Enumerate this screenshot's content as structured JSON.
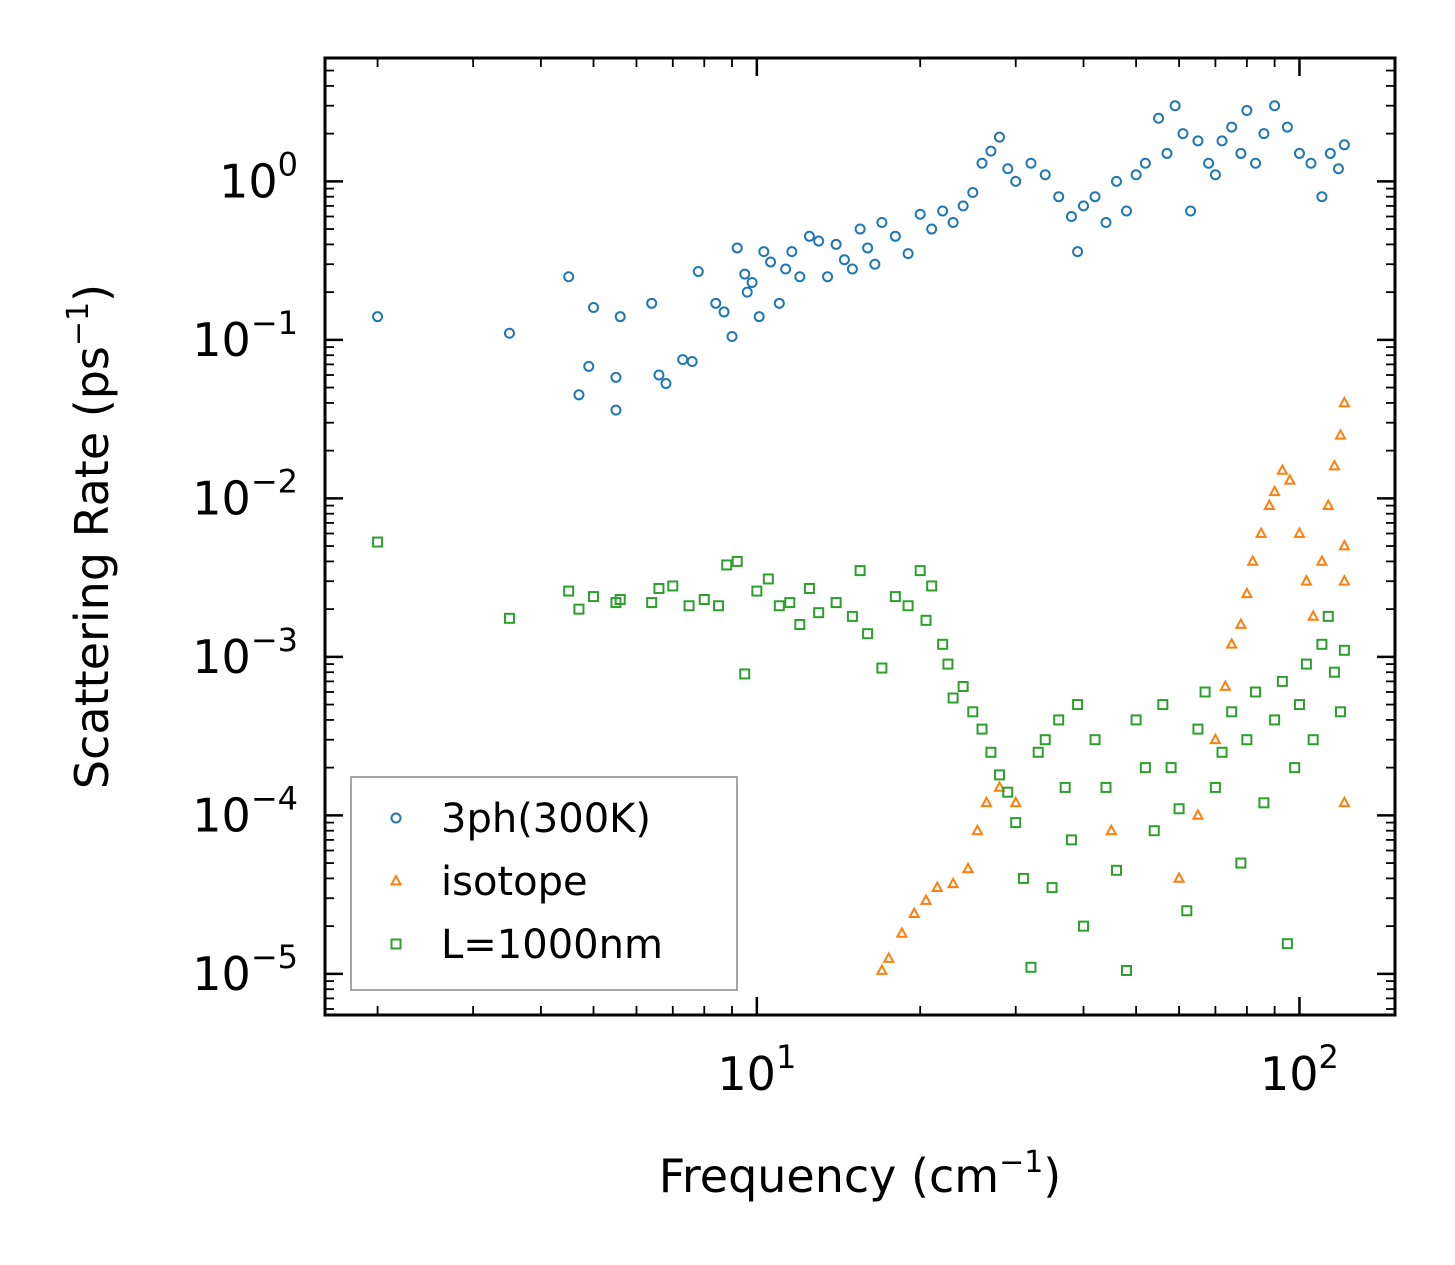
{
  "chart_data": {
    "type": "scatter",
    "xlabel": {
      "base": "Frequency (cm",
      "sup": "−1",
      "tail": ")"
    },
    "ylabel": {
      "base": "Scattering Rate (ps",
      "sup": "−1",
      "tail": ")"
    },
    "xscale": "log",
    "yscale": "log",
    "xlim": [
      1.6,
      150
    ],
    "ylim": [
      5.5e-06,
      6
    ],
    "x_ticks": [
      {
        "value": 10,
        "base": "10",
        "exp": "1"
      },
      {
        "value": 100,
        "base": "10",
        "exp": "2"
      }
    ],
    "y_ticks": [
      {
        "value": 1,
        "base": "10",
        "exp": "0"
      },
      {
        "value": 0.1,
        "base": "10",
        "exp": "−1"
      },
      {
        "value": 0.01,
        "base": "10",
        "exp": "−2"
      },
      {
        "value": 0.001,
        "base": "10",
        "exp": "−3"
      },
      {
        "value": 0.0001,
        "base": "10",
        "exp": "−4"
      },
      {
        "value": 1e-05,
        "base": "10",
        "exp": "−5"
      }
    ],
    "legend_position": "lower-left",
    "series": [
      {
        "name": "3ph(300K)",
        "marker": "circle",
        "color": "#1f77b4",
        "points": [
          [
            2.0,
            0.14
          ],
          [
            3.5,
            0.11
          ],
          [
            4.5,
            0.25
          ],
          [
            4.7,
            0.045
          ],
          [
            4.9,
            0.068
          ],
          [
            5.0,
            0.16
          ],
          [
            5.5,
            0.058
          ],
          [
            5.5,
            0.036
          ],
          [
            5.6,
            0.14
          ],
          [
            6.4,
            0.17
          ],
          [
            6.6,
            0.06
          ],
          [
            6.8,
            0.053
          ],
          [
            7.3,
            0.075
          ],
          [
            7.6,
            0.073
          ],
          [
            7.8,
            0.27
          ],
          [
            8.4,
            0.17
          ],
          [
            8.7,
            0.15
          ],
          [
            9.0,
            0.105
          ],
          [
            9.2,
            0.38
          ],
          [
            9.5,
            0.26
          ],
          [
            9.6,
            0.2
          ],
          [
            9.8,
            0.23
          ],
          [
            10.1,
            0.14
          ],
          [
            10.3,
            0.36
          ],
          [
            10.6,
            0.31
          ],
          [
            11.0,
            0.17
          ],
          [
            11.3,
            0.28
          ],
          [
            11.6,
            0.36
          ],
          [
            12.0,
            0.25
          ],
          [
            12.5,
            0.45
          ],
          [
            13.0,
            0.42
          ],
          [
            13.5,
            0.25
          ],
          [
            14.0,
            0.4
          ],
          [
            14.5,
            0.32
          ],
          [
            15.0,
            0.28
          ],
          [
            15.5,
            0.5
          ],
          [
            16.0,
            0.38
          ],
          [
            16.5,
            0.3
          ],
          [
            17.0,
            0.55
          ],
          [
            18.0,
            0.45
          ],
          [
            19.0,
            0.35
          ],
          [
            20.0,
            0.62
          ],
          [
            21.0,
            0.5
          ],
          [
            22.0,
            0.65
          ],
          [
            23.0,
            0.55
          ],
          [
            24.0,
            0.7
          ],
          [
            25.0,
            0.85
          ],
          [
            26.0,
            1.3
          ],
          [
            27.0,
            1.55
          ],
          [
            28.0,
            1.9
          ],
          [
            29.0,
            1.2
          ],
          [
            30.0,
            1.0
          ],
          [
            32.0,
            1.3
          ],
          [
            34.0,
            1.1
          ],
          [
            36.0,
            0.8
          ],
          [
            38.0,
            0.6
          ],
          [
            39.0,
            0.36
          ],
          [
            40.0,
            0.7
          ],
          [
            42.0,
            0.8
          ],
          [
            44.0,
            0.55
          ],
          [
            46.0,
            1.0
          ],
          [
            48.0,
            0.65
          ],
          [
            50.0,
            1.1
          ],
          [
            52.0,
            1.3
          ],
          [
            55.0,
            2.5
          ],
          [
            57.0,
            1.5
          ],
          [
            59.0,
            3.0
          ],
          [
            61.0,
            2.0
          ],
          [
            63.0,
            0.65
          ],
          [
            65.0,
            1.8
          ],
          [
            68.0,
            1.3
          ],
          [
            70.0,
            1.1
          ],
          [
            72.0,
            1.8
          ],
          [
            75.0,
            2.2
          ],
          [
            78.0,
            1.5
          ],
          [
            80.0,
            2.8
          ],
          [
            83.0,
            1.3
          ],
          [
            86.0,
            2.0
          ],
          [
            90.0,
            3.0
          ],
          [
            95.0,
            2.2
          ],
          [
            100.0,
            1.5
          ],
          [
            105.0,
            1.3
          ],
          [
            110.0,
            0.8
          ],
          [
            114.0,
            1.5
          ],
          [
            118.0,
            1.2
          ],
          [
            121.0,
            1.7
          ]
        ]
      },
      {
        "name": "isotope",
        "marker": "triangle",
        "color": "#ff7f0e",
        "points": [
          [
            17.0,
            1.05e-05
          ],
          [
            17.5,
            1.25e-05
          ],
          [
            18.5,
            1.8e-05
          ],
          [
            19.5,
            2.4e-05
          ],
          [
            20.5,
            2.9e-05
          ],
          [
            21.5,
            3.5e-05
          ],
          [
            23.0,
            3.7e-05
          ],
          [
            24.5,
            4.6e-05
          ],
          [
            25.5,
            8e-05
          ],
          [
            26.5,
            0.00012
          ],
          [
            28.0,
            0.00015
          ],
          [
            30.0,
            0.00012
          ],
          [
            45.0,
            8e-05
          ],
          [
            60.0,
            4e-05
          ],
          [
            65.0,
            0.0001
          ],
          [
            70.0,
            0.0003
          ],
          [
            73.0,
            0.00065
          ],
          [
            75.0,
            0.0012
          ],
          [
            78.0,
            0.0016
          ],
          [
            80.0,
            0.0025
          ],
          [
            82.0,
            0.004
          ],
          [
            85.0,
            0.006
          ],
          [
            88.0,
            0.009
          ],
          [
            90.0,
            0.011
          ],
          [
            93.0,
            0.015
          ],
          [
            96.0,
            0.013
          ],
          [
            100.0,
            0.006
          ],
          [
            103.0,
            0.003
          ],
          [
            106.0,
            0.0018
          ],
          [
            110.0,
            0.004
          ],
          [
            113.0,
            0.009
          ],
          [
            116.0,
            0.016
          ],
          [
            119.0,
            0.025
          ],
          [
            121.0,
            0.04
          ],
          [
            121.0,
            0.005
          ],
          [
            121.0,
            0.003
          ],
          [
            121.0,
            0.00012
          ]
        ]
      },
      {
        "name": "L=1000nm",
        "marker": "square",
        "color": "#2ca02c",
        "points": [
          [
            2.0,
            0.0053
          ],
          [
            3.5,
            0.00175
          ],
          [
            4.5,
            0.0026
          ],
          [
            4.7,
            0.002
          ],
          [
            5.0,
            0.0024
          ],
          [
            5.5,
            0.0022
          ],
          [
            5.6,
            0.0023
          ],
          [
            6.4,
            0.0022
          ],
          [
            6.6,
            0.0027
          ],
          [
            7.0,
            0.0028
          ],
          [
            7.5,
            0.0021
          ],
          [
            8.0,
            0.0023
          ],
          [
            8.5,
            0.0021
          ],
          [
            8.8,
            0.0038
          ],
          [
            9.2,
            0.004
          ],
          [
            9.5,
            0.00078
          ],
          [
            10.0,
            0.0026
          ],
          [
            10.5,
            0.0031
          ],
          [
            11.0,
            0.0021
          ],
          [
            11.5,
            0.0022
          ],
          [
            12.0,
            0.0016
          ],
          [
            12.5,
            0.0027
          ],
          [
            13.0,
            0.0019
          ],
          [
            14.0,
            0.0022
          ],
          [
            15.0,
            0.0018
          ],
          [
            15.5,
            0.0035
          ],
          [
            16.0,
            0.0014
          ],
          [
            17.0,
            0.00085
          ],
          [
            18.0,
            0.0024
          ],
          [
            19.0,
            0.0021
          ],
          [
            20.0,
            0.0035
          ],
          [
            20.5,
            0.0017
          ],
          [
            21.0,
            0.0028
          ],
          [
            22.0,
            0.0012
          ],
          [
            22.5,
            0.0009
          ],
          [
            23.0,
            0.00055
          ],
          [
            24.0,
            0.00065
          ],
          [
            25.0,
            0.00045
          ],
          [
            26.0,
            0.00035
          ],
          [
            27.0,
            0.00025
          ],
          [
            28.0,
            0.00018
          ],
          [
            29.0,
            0.00014
          ],
          [
            30.0,
            9e-05
          ],
          [
            31.0,
            4e-05
          ],
          [
            32.0,
            1.1e-05
          ],
          [
            33.0,
            0.00025
          ],
          [
            34.0,
            0.0003
          ],
          [
            35.0,
            3.5e-05
          ],
          [
            36.0,
            0.0004
          ],
          [
            37.0,
            0.00015
          ],
          [
            38.0,
            7e-05
          ],
          [
            39.0,
            0.0005
          ],
          [
            40.0,
            2e-05
          ],
          [
            42.0,
            0.0003
          ],
          [
            44.0,
            0.00015
          ],
          [
            46.0,
            4.5e-05
          ],
          [
            48.0,
            1.05e-05
          ],
          [
            50.0,
            0.0004
          ],
          [
            52.0,
            0.0002
          ],
          [
            54.0,
            8e-05
          ],
          [
            56.0,
            0.0005
          ],
          [
            58.0,
            0.0002
          ],
          [
            60.0,
            0.00011
          ],
          [
            62.0,
            2.5e-05
          ],
          [
            65.0,
            0.00035
          ],
          [
            67.0,
            0.0006
          ],
          [
            70.0,
            0.00015
          ],
          [
            72.0,
            0.00025
          ],
          [
            75.0,
            0.00045
          ],
          [
            78.0,
            5e-05
          ],
          [
            80.0,
            0.0003
          ],
          [
            83.0,
            0.0006
          ],
          [
            86.0,
            0.00012
          ],
          [
            90.0,
            0.0004
          ],
          [
            93.0,
            0.0007
          ],
          [
            95.0,
            1.55e-05
          ],
          [
            98.0,
            0.0002
          ],
          [
            100.0,
            0.0005
          ],
          [
            103.0,
            0.0009
          ],
          [
            106.0,
            0.0003
          ],
          [
            110.0,
            0.0012
          ],
          [
            113.0,
            0.0018
          ],
          [
            116.0,
            0.0008
          ],
          [
            119.0,
            0.00045
          ],
          [
            121.0,
            0.0011
          ]
        ]
      }
    ]
  }
}
